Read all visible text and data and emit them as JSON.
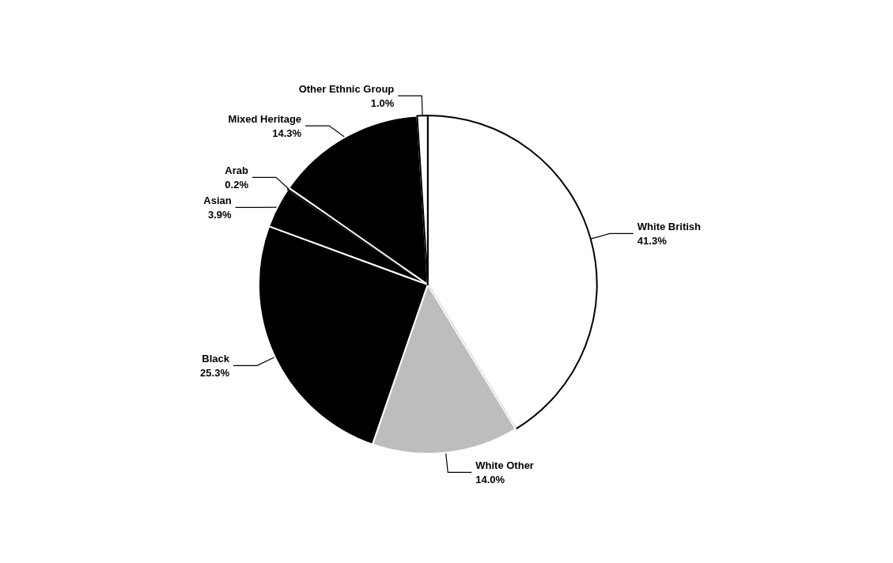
{
  "chart_data": {
    "type": "pie",
    "categories": [
      "White British",
      "White Other",
      "Black",
      "Asian",
      "Arab",
      "Mixed Heritage",
      "Other Ethnic Group"
    ],
    "values": [
      41.3,
      14.0,
      25.3,
      3.9,
      0.2,
      14.3,
      1.0
    ],
    "colors": [
      "#ffffff",
      "#bdbdbd",
      "#000000",
      "#000000",
      "#ffffff",
      "#000000",
      "#ffffff"
    ],
    "value_labels": [
      "41.3%",
      "14.0%",
      "25.3%",
      "3.9%",
      "0.2%",
      "14.3%",
      "1.0%"
    ],
    "legend": false
  }
}
